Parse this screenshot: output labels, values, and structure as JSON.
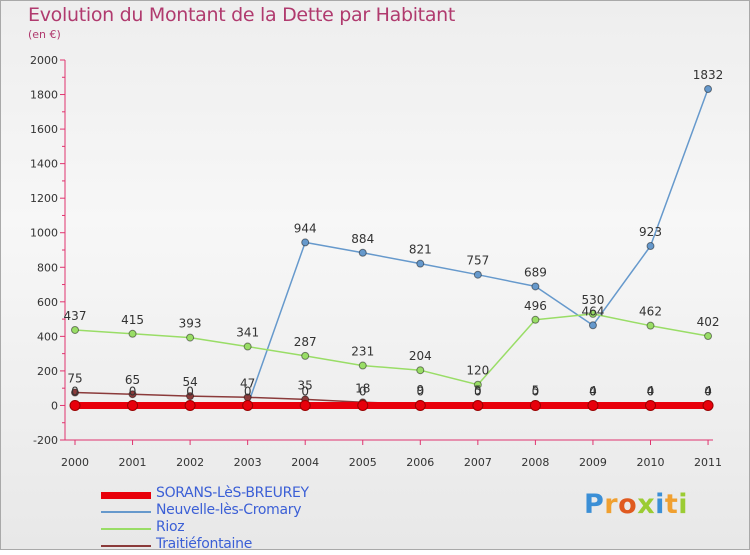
{
  "header": {
    "title": "Evolution du Montant de la Dette par Habitant",
    "subtitle": "(en €)"
  },
  "chart_data": {
    "type": "line",
    "title": "Evolution du Montant de la Dette par Habitant",
    "subtitle": "(en €)",
    "xlabel": "",
    "ylabel": "",
    "x": [
      "2000",
      "2001",
      "2002",
      "2003",
      "2004",
      "2005",
      "2006",
      "2007",
      "2008",
      "2009",
      "2010",
      "2011"
    ],
    "ylim": [
      -200,
      2000
    ],
    "yticks": [
      "2000",
      "1800",
      "1600",
      "1400",
      "1200",
      "1000",
      "800",
      "600",
      "400",
      "200",
      "0",
      "-200"
    ],
    "grid": false,
    "legend_position": "bottom-left",
    "series": [
      {
        "name": "SORANS-LèS-BREUREY",
        "color": "#e8000b",
        "values": [
          0,
          0,
          0,
          0,
          0,
          0,
          0,
          0,
          0,
          0,
          0,
          0
        ],
        "labels": [
          "0",
          "0",
          "0",
          "0",
          "0",
          "0",
          "0",
          "0",
          "0",
          "0",
          "0",
          "0"
        ]
      },
      {
        "name": "Neuvelle-lès-Cromary",
        "color": "#6699cc",
        "values": [
          0,
          0,
          0,
          0,
          944,
          884,
          821,
          757,
          689,
          464,
          923,
          1832
        ],
        "labels": [
          "",
          "",
          "",
          "",
          "944",
          "884",
          "821",
          "757",
          "689",
          "464",
          "923",
          "1832"
        ]
      },
      {
        "name": "Rioz",
        "color": "#99dd66",
        "values": [
          437,
          415,
          393,
          341,
          287,
          231,
          204,
          120,
          496,
          530,
          462,
          402
        ],
        "labels": [
          "437",
          "415",
          "393",
          "341",
          "287",
          "231",
          "204",
          "120",
          "496",
          "530",
          "462",
          "402"
        ]
      },
      {
        "name": "Traitiéfontaine",
        "color": "#8b3a3a",
        "values": [
          75,
          65,
          54,
          47,
          35,
          18,
          9,
          5,
          5,
          4,
          4,
          4
        ],
        "labels": [
          "75",
          "65",
          "54",
          "47",
          "35",
          "18",
          "9",
          "5",
          "5",
          "4",
          "4",
          "4"
        ]
      }
    ]
  },
  "legend": [
    {
      "label": "SORANS-LèS-BREUREY",
      "color": "#e8000b",
      "text_color": "#3b5fd6"
    },
    {
      "label": "Neuvelle-lès-Cromary",
      "color": "#6699cc",
      "text_color": "#3b5fd6"
    },
    {
      "label": "Rioz",
      "color": "#99dd66",
      "text_color": "#3b5fd6"
    },
    {
      "label": "Traitiéfontaine",
      "color": "#8b3a3a",
      "text_color": "#3b5fd6"
    }
  ],
  "logo": {
    "text": "Proxiti",
    "colors": [
      "#3b8fd6",
      "#f0a030",
      "#e05a20",
      "#9bcc33",
      "#3b8fd6",
      "#f0a030",
      "#9bcc33"
    ]
  }
}
